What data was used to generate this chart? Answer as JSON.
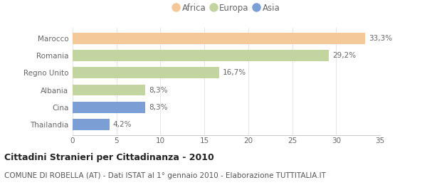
{
  "categories": [
    "Marocco",
    "Romania",
    "Regno Unito",
    "Albania",
    "Cina",
    "Thailandia"
  ],
  "values": [
    33.3,
    29.2,
    16.7,
    8.3,
    8.3,
    4.2
  ],
  "labels": [
    "33,3%",
    "29,2%",
    "16,7%",
    "8,3%",
    "8,3%",
    "4,2%"
  ],
  "colors": [
    "#f5c897",
    "#c2d4a0",
    "#c2d4a0",
    "#c2d4a0",
    "#7b9fd4",
    "#7b9fd4"
  ],
  "legend_items": [
    {
      "label": "Africa",
      "color": "#f5c897"
    },
    {
      "label": "Europa",
      "color": "#c2d4a0"
    },
    {
      "label": "Asia",
      "color": "#7b9fd4"
    }
  ],
  "xlim": [
    0,
    35
  ],
  "xticks": [
    0,
    5,
    10,
    15,
    20,
    25,
    30,
    35
  ],
  "title": "Cittadini Stranieri per Cittadinanza - 2010",
  "subtitle": "COMUNE DI ROBELLA (AT) - Dati ISTAT al 1° gennaio 2010 - Elaborazione TUTTITALIA.IT",
  "title_fontsize": 9,
  "subtitle_fontsize": 7.5,
  "label_fontsize": 7.5,
  "tick_fontsize": 7.5,
  "bar_height": 0.65,
  "background_color": "#ffffff",
  "label_color": "#666666",
  "spine_color": "#cccccc",
  "grid_color": "#e5e5e5"
}
